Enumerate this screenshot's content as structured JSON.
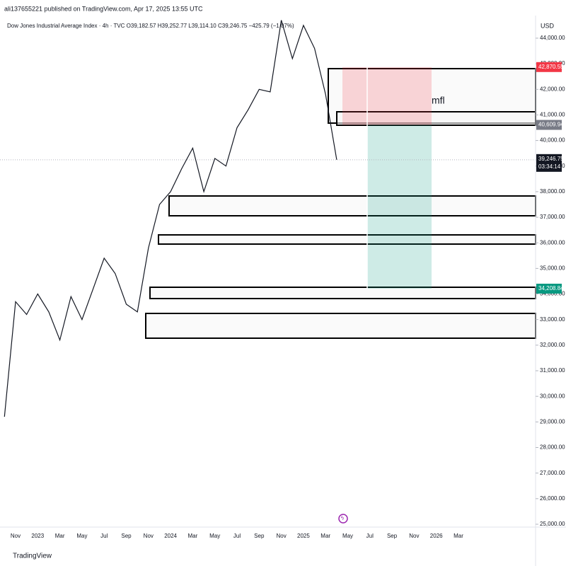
{
  "header": {
    "publisher": "ali137655221 published on TradingView.com, Apr 17, 2025 13:55 UTC",
    "symbol": "Dow Jones Industrial Average Index · 4h · TVC  O39,182.57  H39,252.77  L39,114.10  C39,246.75  −425.79 (−1.07%)"
  },
  "footer": {
    "logo": "TradingView"
  },
  "chart_data": {
    "type": "line",
    "currency": "USD",
    "annotation": "mfl",
    "color": "#131722",
    "categories": [
      null,
      "Nov",
      null,
      "2023",
      null,
      "Mar",
      null,
      "May",
      null,
      "Jul",
      null,
      "Sep",
      null,
      "Nov",
      null,
      "2024",
      null,
      "Mar",
      null,
      "May",
      null,
      "Jul",
      null,
      "Sep",
      null,
      "Nov",
      null,
      "2025",
      null,
      "Mar",
      null,
      "May",
      null,
      "Jul",
      null,
      "Sep",
      null,
      "Nov",
      null,
      "2026",
      null,
      "Mar"
    ],
    "values": [
      29200,
      33700,
      33200,
      34000,
      33300,
      32200,
      33900,
      33000,
      34200,
      35400,
      34800,
      33600,
      33300,
      35800,
      37500,
      38000,
      38900,
      39700,
      38000,
      39300,
      39000,
      40500,
      41200,
      42000,
      41900,
      44700,
      43200,
      44500,
      43600,
      41800,
      39246.75,
      null,
      null,
      null,
      null,
      null,
      null,
      null,
      null,
      null,
      null,
      null
    ],
    "ylim": [
      24900,
      44900
    ],
    "yticks": [
      {
        "value": 25000,
        "label": "25,000.00"
      },
      {
        "value": 26000,
        "label": "26,000.00"
      },
      {
        "value": 27000,
        "label": "27,000.00"
      },
      {
        "value": 28000,
        "label": "28,000.00"
      },
      {
        "value": 29000,
        "label": "29,000.00"
      },
      {
        "value": 30000,
        "label": "30,000.00"
      },
      {
        "value": 31000,
        "label": "31,000.00"
      },
      {
        "value": 32000,
        "label": "32,000.00"
      },
      {
        "value": 33000,
        "label": "33,000.00"
      },
      {
        "value": 34000,
        "label": "34,000.00"
      },
      {
        "value": 35000,
        "label": "35,000.00"
      },
      {
        "value": 36000,
        "label": "36,000.00"
      },
      {
        "value": 37000,
        "label": "37,000.00"
      },
      {
        "value": 38000,
        "label": "38,000.00"
      },
      {
        "value": 39000,
        "label": "39,000.00"
      },
      {
        "value": 40000,
        "label": "40,000.00"
      },
      {
        "value": 41000,
        "label": "41,000.00"
      },
      {
        "value": 42000,
        "label": "42,000.00"
      },
      {
        "value": 43000,
        "label": "43,000.00"
      },
      {
        "value": 44000,
        "label": "44,000.00"
      }
    ],
    "price_labels": [
      {
        "value": 42870.55,
        "label": "42,870.55",
        "color": "#f23645"
      },
      {
        "value": 40609.94,
        "label": "40,609.94",
        "color": "#787b86"
      },
      {
        "value": 34208.84,
        "label": "34,208.84",
        "color": "#089981"
      }
    ],
    "last_price": {
      "value": 39246.75,
      "label": "39,246.75",
      "countdown": "03:34:14"
    }
  }
}
